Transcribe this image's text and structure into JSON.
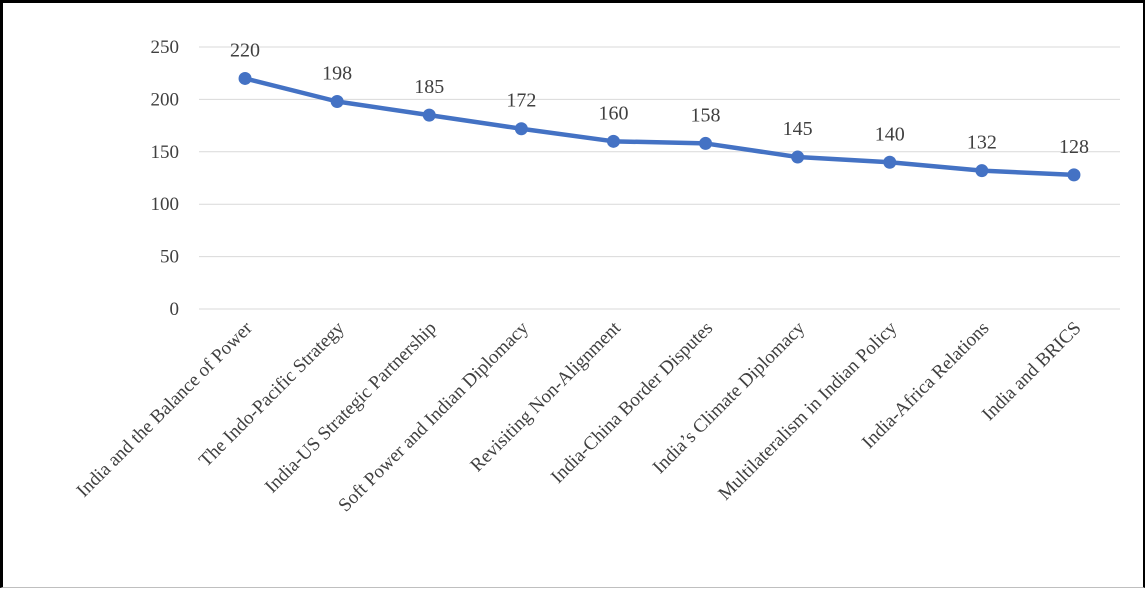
{
  "chart_data": {
    "type": "line",
    "categories": [
      "India and the Balance of Power",
      "The Indo-Pacific Strategy",
      "India-US Strategic Partnership",
      "Soft Power and Indian Diplomacy",
      "Revisiting Non-Alignment",
      "India-China Border Disputes",
      "India’s Climate Diplomacy",
      "Multilateralism in Indian Policy",
      "India-Africa Relations",
      "India and BRICS"
    ],
    "series": [
      {
        "values": [
          220,
          198,
          185,
          172,
          160,
          158,
          145,
          140,
          132,
          128
        ]
      }
    ],
    "yticks": [
      "0",
      "50",
      "100",
      "150",
      "200",
      "250"
    ],
    "ylim": [
      0,
      250
    ],
    "grid": true,
    "data_labels": true,
    "legend": "none",
    "title": "",
    "xlabel": "",
    "ylabel": "",
    "colors": {
      "line": "#4472c4",
      "grid": "#d9d9d9",
      "text": "#404040"
    }
  }
}
